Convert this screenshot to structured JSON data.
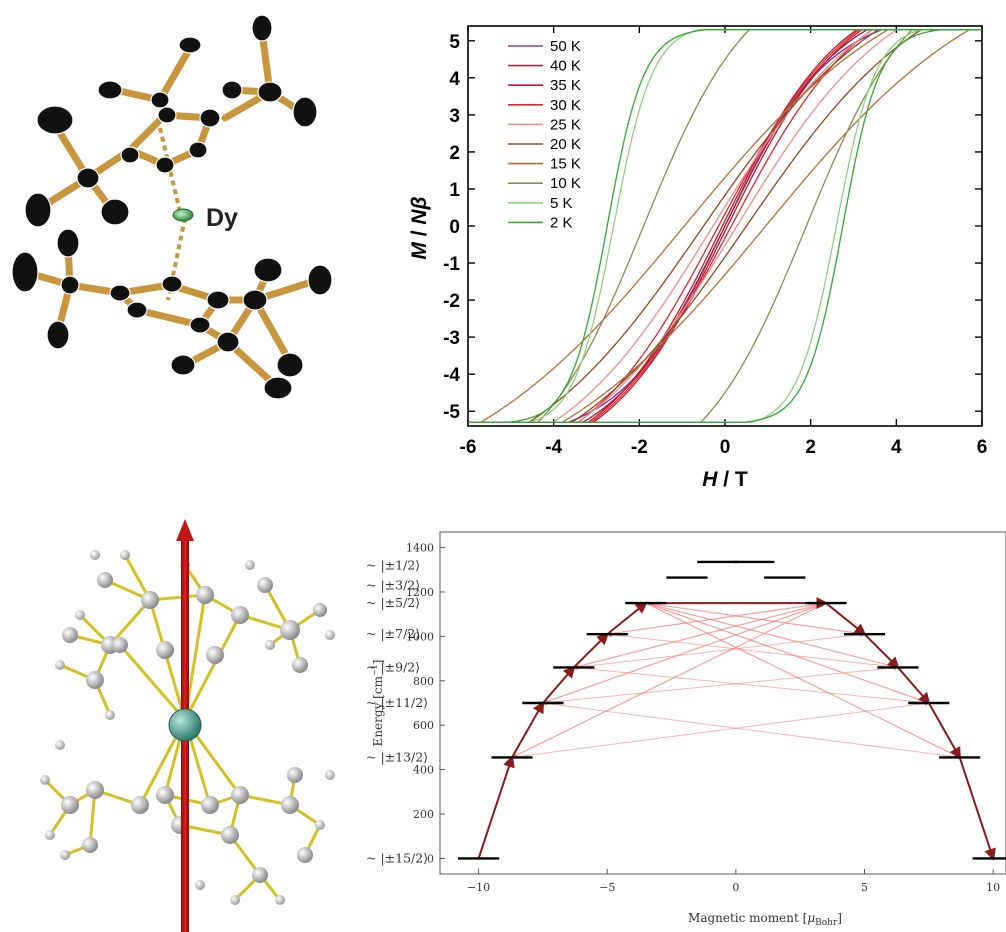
{
  "molecule_top": {
    "atom_label": "Dy"
  },
  "chart_data": [
    {
      "type": "line",
      "xlabel_italic": "H",
      "xlabel_unit": " / T",
      "ylabel": "M / Nβ",
      "xlim": [
        -6,
        6
      ],
      "ylim": [
        -5.4,
        5.4
      ],
      "xticks": [
        -6,
        -4,
        -2,
        0,
        2,
        4,
        6
      ],
      "yticks": [
        -5,
        -4,
        -3,
        -2,
        -1,
        0,
        1,
        2,
        3,
        4,
        5
      ],
      "legend_position": "top-left",
      "series": [
        {
          "name": "50 K",
          "color": "#8e3aa6",
          "ms": 5.6,
          "alpha": 1.1,
          "hc": 0.0
        },
        {
          "name": "40 K",
          "color": "#a02848",
          "ms": 6.0,
          "alpha": 1.0,
          "hc": 0.0
        },
        {
          "name": "35 K",
          "color": "#c0172a",
          "ms": 6.3,
          "alpha": 0.95,
          "hc": 0.06
        },
        {
          "name": "30 K",
          "color": "#e0282e",
          "ms": 6.5,
          "alpha": 0.85,
          "hc": 0.15
        },
        {
          "name": "25 K",
          "color": "#f08c8a",
          "ms": 6.6,
          "alpha": 0.72,
          "hc": 0.28
        },
        {
          "name": "20 K",
          "color": "#8c4a26",
          "ms": 6.8,
          "alpha": 0.62,
          "hc": 0.5
        },
        {
          "name": "15 K",
          "color": "#b0703a",
          "ms": 7.0,
          "alpha": 0.5,
          "hc": 0.95
        },
        {
          "name": "10 K",
          "color": "#8b8b50",
          "ms": 6.9,
          "alpha": 0.32,
          "hc": 1.9
        },
        {
          "name": "5 K",
          "color": "#8fd080",
          "ms": 5.4,
          "alpha": 0.06,
          "hc": 2.6
        },
        {
          "name": "2 K",
          "color": "#32a832",
          "ms": 5.3,
          "alpha": 0.05,
          "hc": 2.75
        }
      ]
    },
    {
      "type": "line",
      "xlabel": "Magnetic moment [μBohr]",
      "ylabel": "Energy [cm⁻¹]",
      "xlim": [
        -11.5,
        10.5
      ],
      "ylim": [
        -70,
        1470
      ],
      "xticks": [
        -10,
        -5,
        0,
        5,
        10
      ],
      "yticks": [
        0,
        200,
        400,
        600,
        800,
        1000,
        1200,
        1400
      ],
      "states": [
        {
          "label": "~ |±15/2⟩",
          "energy": 0,
          "moment": 10
        },
        {
          "label": "~ |±13/2⟩",
          "energy": 455,
          "moment": 8.7
        },
        {
          "label": "~ |±11/2⟩",
          "energy": 700,
          "moment": 7.5
        },
        {
          "label": "~ |±9/2⟩",
          "energy": 860,
          "moment": 6.3
        },
        {
          "label": "~ |±7/2⟩",
          "energy": 1010,
          "moment": 5.0
        },
        {
          "label": "~ |±5/2⟩",
          "energy": 1150,
          "moment": 3.5
        },
        {
          "label": "~ |±3/2⟩",
          "energy": 1265,
          "moment": 1.9
        },
        {
          "label": "~ |±1/2⟩",
          "energy": 1335,
          "moment": 0.7
        }
      ],
      "relaxation_path_color": "#8b1a1a",
      "transition_color": "#f08080"
    }
  ]
}
